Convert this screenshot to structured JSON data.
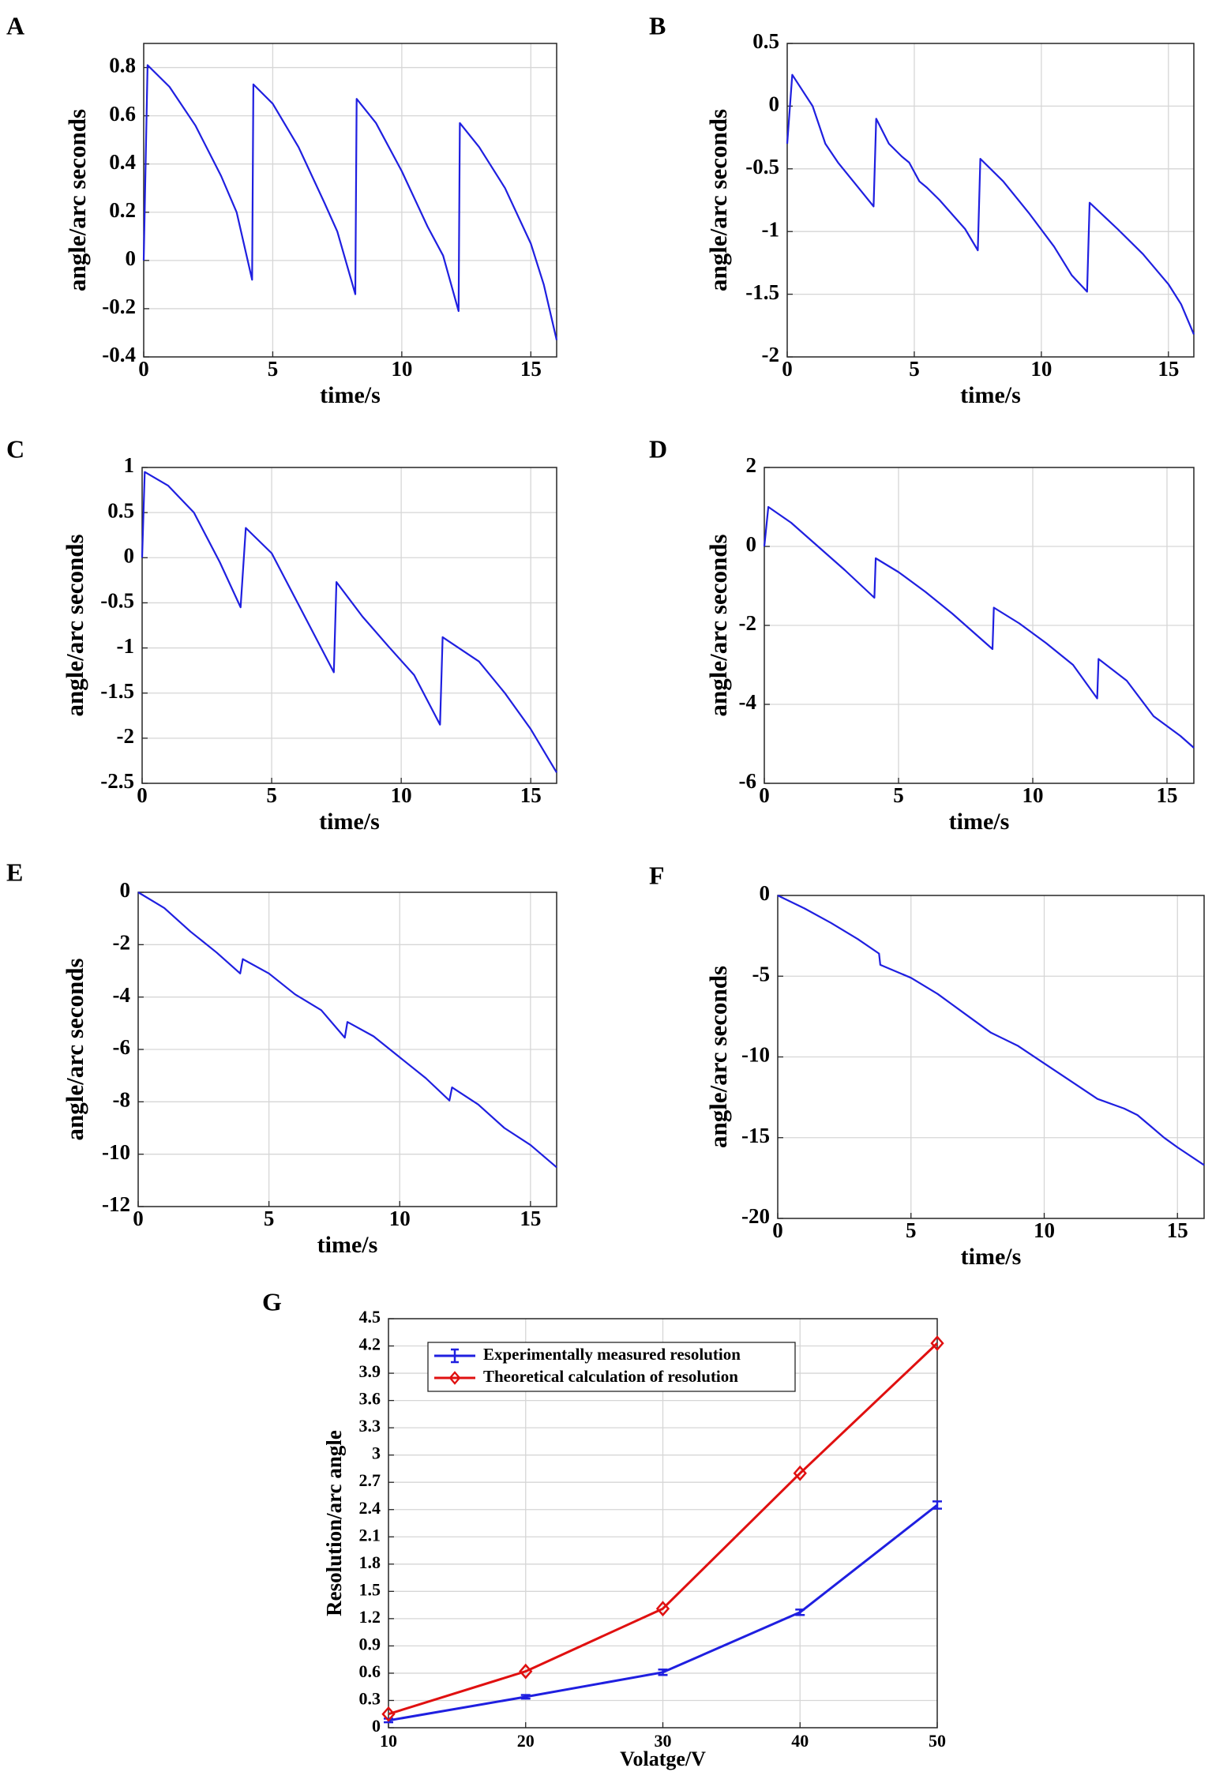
{
  "figure": {
    "panels": [
      "A",
      "B",
      "C",
      "D",
      "E",
      "F",
      "G"
    ]
  },
  "chart_data": [
    {
      "id": "A",
      "type": "line",
      "title": "A",
      "xlabel": "time/s",
      "ylabel": "angle/arc seconds",
      "xlim": [
        0,
        16
      ],
      "ylim": [
        -0.4,
        0.9
      ],
      "grid": true,
      "xticks": [
        0,
        5,
        10,
        15
      ],
      "xtick_labels": [
        "0",
        "5",
        "10",
        "15"
      ],
      "yticks": [
        -0.4,
        -0.2,
        0,
        0.2,
        0.4,
        0.6,
        0.8
      ],
      "ytick_labels": [
        "-0.4",
        "-0.2",
        "0",
        "0.2",
        "0.4",
        "0.6",
        "0.8"
      ],
      "series": [
        {
          "name": "angle",
          "color": "#1f1fe0",
          "x": [
            0,
            0.15,
            1,
            2,
            3,
            3.6,
            4.2,
            4.25,
            5,
            6,
            7,
            7.5,
            8.2,
            8.25,
            9,
            10,
            11,
            11.6,
            12.2,
            12.25,
            13,
            14,
            15,
            15.5,
            16
          ],
          "y": [
            0,
            0.81,
            0.72,
            0.56,
            0.35,
            0.2,
            -0.08,
            0.73,
            0.65,
            0.47,
            0.24,
            0.12,
            -0.14,
            0.67,
            0.57,
            0.37,
            0.14,
            0.02,
            -0.21,
            0.57,
            0.47,
            0.3,
            0.07,
            -0.1,
            -0.33
          ]
        }
      ]
    },
    {
      "id": "B",
      "type": "line",
      "title": "B",
      "xlabel": "time/s",
      "ylabel": "angle/arc seconds",
      "xlim": [
        0,
        16
      ],
      "ylim": [
        -2,
        0.5
      ],
      "grid": true,
      "xticks": [
        0,
        5,
        10,
        15
      ],
      "xtick_labels": [
        "0",
        "5",
        "10",
        "15"
      ],
      "yticks": [
        -2,
        -1.5,
        -1,
        -0.5,
        0,
        0.5
      ],
      "ytick_labels": [
        "-2",
        "-1.5",
        "-1",
        "-0.5",
        "0",
        "0.5"
      ],
      "series": [
        {
          "name": "angle",
          "color": "#1f1fe0",
          "x": [
            0,
            0.2,
            1,
            1.5,
            2,
            2.8,
            3.4,
            3.5,
            4,
            4.5,
            4.8,
            5.2,
            5.5,
            6,
            7,
            7.5,
            7.6,
            8.5,
            9.5,
            10.5,
            11.2,
            11.8,
            11.9,
            13,
            14,
            15,
            15.5,
            16
          ],
          "y": [
            -0.3,
            0.25,
            0.0,
            -0.3,
            -0.45,
            -0.65,
            -0.8,
            -0.1,
            -0.3,
            -0.4,
            -0.45,
            -0.6,
            -0.65,
            -0.75,
            -0.98,
            -1.15,
            -0.42,
            -0.6,
            -0.85,
            -1.12,
            -1.35,
            -1.48,
            -0.77,
            -0.98,
            -1.18,
            -1.42,
            -1.58,
            -1.82
          ]
        }
      ]
    },
    {
      "id": "C",
      "type": "line",
      "title": "C",
      "xlabel": "time/s",
      "ylabel": "angle/arc seconds",
      "xlim": [
        0,
        16
      ],
      "ylim": [
        -2.5,
        1
      ],
      "grid": true,
      "xticks": [
        0,
        5,
        10,
        15
      ],
      "xtick_labels": [
        "0",
        "5",
        "10",
        "15"
      ],
      "yticks": [
        -2.5,
        -2,
        -1.5,
        -1,
        -0.5,
        0,
        0.5,
        1
      ],
      "ytick_labels": [
        "-2.5",
        "-2",
        "-1.5",
        "-1",
        "-0.5",
        "0",
        "0.5",
        "1"
      ],
      "series": [
        {
          "name": "angle",
          "color": "#1f1fe0",
          "x": [
            0,
            0.1,
            1,
            2,
            3,
            3.8,
            4.0,
            5,
            6,
            7,
            7.4,
            7.5,
            8.5,
            9.5,
            10.5,
            11.5,
            11.6,
            13,
            14,
            15,
            16
          ],
          "y": [
            0,
            0.95,
            0.8,
            0.5,
            -0.05,
            -0.55,
            0.33,
            0.05,
            -0.5,
            -1.05,
            -1.27,
            -0.27,
            -0.65,
            -0.98,
            -1.3,
            -1.85,
            -0.88,
            -1.15,
            -1.5,
            -1.9,
            -2.38
          ]
        }
      ]
    },
    {
      "id": "D",
      "type": "line",
      "title": "D",
      "xlabel": "time/s",
      "ylabel": "angle/arc seconds",
      "xlim": [
        0,
        16
      ],
      "ylim": [
        -6,
        2
      ],
      "grid": true,
      "xticks": [
        0,
        5,
        10,
        15
      ],
      "xtick_labels": [
        "0",
        "5",
        "10",
        "15"
      ],
      "yticks": [
        -6,
        -4,
        -2,
        0,
        2
      ],
      "ytick_labels": [
        "-6",
        "-4",
        "-2",
        "0",
        "2"
      ],
      "series": [
        {
          "name": "angle",
          "color": "#1f1fe0",
          "x": [
            0,
            0.15,
            1,
            2,
            3,
            4.1,
            4.15,
            5,
            6,
            7,
            8.5,
            8.55,
            9.5,
            10.5,
            11.5,
            12.4,
            12.45,
            13.5,
            14.5,
            15.5,
            16
          ],
          "y": [
            0,
            1.0,
            0.6,
            0.0,
            -0.6,
            -1.3,
            -0.3,
            -0.65,
            -1.15,
            -1.7,
            -2.6,
            -1.55,
            -1.95,
            -2.45,
            -3.0,
            -3.85,
            -2.85,
            -3.4,
            -4.3,
            -4.8,
            -5.1
          ]
        }
      ]
    },
    {
      "id": "E",
      "type": "line",
      "title": "E",
      "xlabel": "time/s",
      "ylabel": "angle/arc seconds",
      "xlim": [
        0,
        16
      ],
      "ylim": [
        -12,
        0
      ],
      "grid": true,
      "xticks": [
        0,
        5,
        10,
        15
      ],
      "xtick_labels": [
        "0",
        "5",
        "10",
        "15"
      ],
      "yticks": [
        -12,
        -10,
        -8,
        -6,
        -4,
        -2,
        0
      ],
      "ytick_labels": [
        "-12",
        "-10",
        "-8",
        "-6",
        "-4",
        "-2",
        "0"
      ],
      "series": [
        {
          "name": "angle",
          "color": "#1f1fe0",
          "x": [
            0,
            1,
            2,
            3,
            3.9,
            4.0,
            5,
            6,
            7,
            7.9,
            8.0,
            9,
            10,
            11,
            11.9,
            12.0,
            13,
            14,
            15,
            16
          ],
          "y": [
            0,
            -0.6,
            -1.5,
            -2.3,
            -3.1,
            -2.55,
            -3.1,
            -3.9,
            -4.5,
            -5.55,
            -4.95,
            -5.5,
            -6.3,
            -7.1,
            -7.95,
            -7.45,
            -8.1,
            -9.0,
            -9.65,
            -10.5
          ]
        }
      ]
    },
    {
      "id": "F",
      "type": "line",
      "title": "F",
      "xlabel": "time/s",
      "ylabel": "angle/arc seconds",
      "xlim": [
        0,
        16
      ],
      "ylim": [
        -20,
        0
      ],
      "grid": true,
      "xticks": [
        0,
        5,
        10,
        15
      ],
      "xtick_labels": [
        "0",
        "5",
        "10",
        "15"
      ],
      "yticks": [
        -20,
        -15,
        -10,
        -5,
        0
      ],
      "ytick_labels": [
        "-20",
        "-15",
        "-10",
        "-5",
        "0"
      ],
      "series": [
        {
          "name": "angle",
          "color": "#1f1fe0",
          "x": [
            0,
            1,
            2,
            3,
            3.8,
            3.85,
            5,
            6,
            7,
            8,
            9,
            10,
            11,
            12,
            13,
            13.5,
            14,
            14.5,
            15,
            16
          ],
          "y": [
            0,
            -0.8,
            -1.7,
            -2.7,
            -3.6,
            -4.3,
            -5.1,
            -6.1,
            -7.3,
            -8.5,
            -9.3,
            -10.4,
            -11.5,
            -12.6,
            -13.2,
            -13.6,
            -14.3,
            -15.0,
            -15.6,
            -16.7
          ]
        }
      ]
    },
    {
      "id": "G",
      "type": "line",
      "title": "G",
      "xlabel": "Volatge/V",
      "ylabel": "Resolution/arc angle",
      "xlim": [
        10,
        50
      ],
      "ylim": [
        0,
        4.5
      ],
      "grid": true,
      "xticks": [
        10,
        20,
        30,
        40,
        50
      ],
      "xtick_labels": [
        "10",
        "20",
        "30",
        "40",
        "50"
      ],
      "yticks": [
        0,
        0.3,
        0.6,
        0.9,
        1.2,
        1.5,
        1.8,
        2.1,
        2.4,
        2.7,
        3,
        3.3,
        3.6,
        3.9,
        4.2,
        4.5
      ],
      "ytick_labels": [
        "0",
        "0.3",
        "0.6",
        "0.9",
        "1.2",
        "1.5",
        "1.8",
        "2.1",
        "2.4",
        "2.7",
        "3",
        "3.3",
        "3.6",
        "3.9",
        "4.2",
        "4.5"
      ],
      "legend_position": "top-left",
      "categories": [
        10,
        20,
        30,
        40,
        50
      ],
      "series": [
        {
          "name": "Experimentally measured resolution",
          "color": "#1f1fe0",
          "marker": "errorbar",
          "x": [
            10,
            20,
            30,
            40,
            50
          ],
          "values": [
            0.08,
            0.34,
            0.61,
            1.27,
            2.45
          ],
          "error": [
            0.02,
            0.02,
            0.03,
            0.03,
            0.04
          ]
        },
        {
          "name": "Theoretical calculation of resolution",
          "color": "#e01010",
          "marker": "diamond",
          "x": [
            10,
            20,
            30,
            40,
            50
          ],
          "values": [
            0.15,
            0.62,
            1.31,
            2.8,
            4.23
          ]
        }
      ]
    }
  ]
}
